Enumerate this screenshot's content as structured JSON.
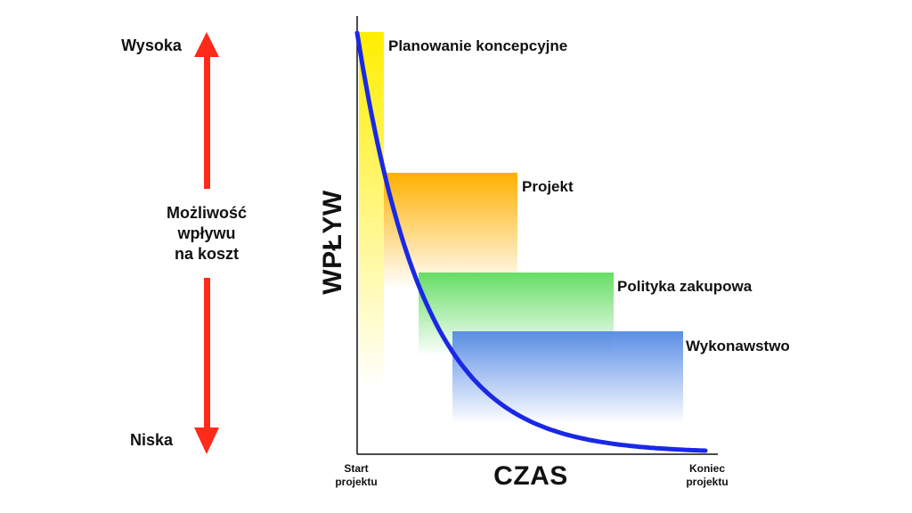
{
  "left_scale": {
    "top_label": "Wysoka",
    "bottom_label": "Niska",
    "middle_lines": [
      "Możliwość",
      "wpływu",
      "na koszt"
    ],
    "arrow_color": "#ff2a1a"
  },
  "axes": {
    "y_label": "WPŁYW",
    "x_label": "CZAS",
    "x_start_lines": [
      "Start",
      "projektu"
    ],
    "x_end_lines": [
      "Koniec",
      "projektu"
    ]
  },
  "phases": [
    {
      "label": "Planowanie koncepcyjne",
      "color": "#ffee00"
    },
    {
      "label": "Projekt",
      "color": "#ffb000"
    },
    {
      "label": "Polityka zakupowa",
      "color": "#66dd66"
    },
    {
      "label": "Wykonawstwo",
      "color": "#5b8ee6"
    }
  ],
  "curve_color": "#1a28e6"
}
